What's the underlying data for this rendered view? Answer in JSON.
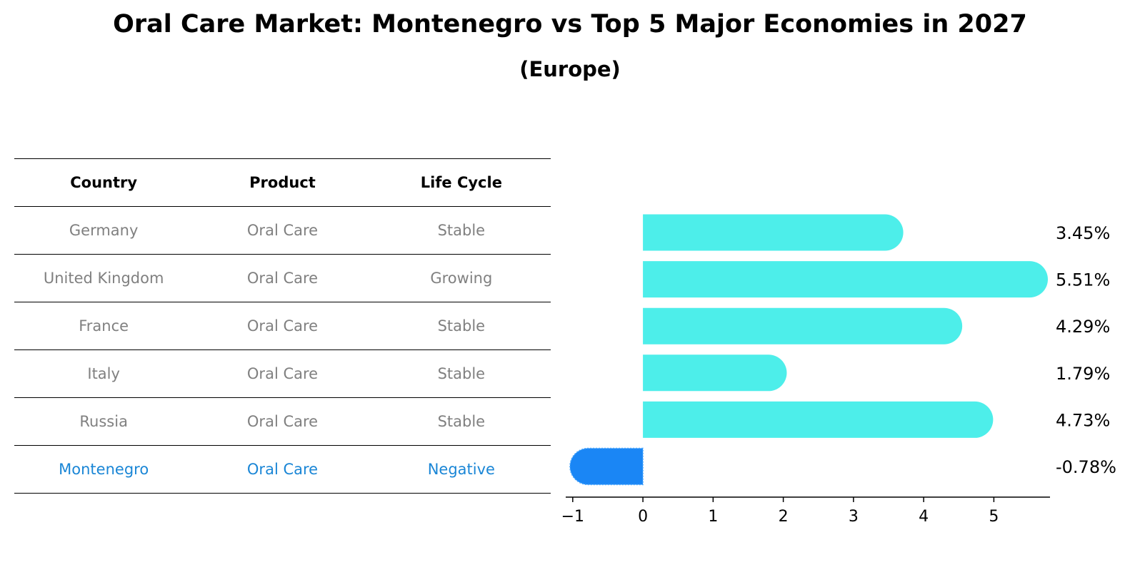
{
  "title": "Oral Care Market: Montenegro vs Top 5 Major Economies in 2027",
  "subtitle": "(Europe)",
  "table": {
    "headers": [
      "Country",
      "Product",
      "Life Cycle"
    ],
    "rows": [
      {
        "country": "Germany",
        "product": "Oral Care",
        "life_cycle": "Stable"
      },
      {
        "country": "United Kingdom",
        "product": "Oral Care",
        "life_cycle": "Growing"
      },
      {
        "country": "France",
        "product": "Oral Care",
        "life_cycle": "Stable"
      },
      {
        "country": "Italy",
        "product": "Oral Care",
        "life_cycle": "Stable"
      },
      {
        "country": "Russia",
        "product": "Oral Care",
        "life_cycle": "Stable"
      },
      {
        "country": "Montenegro",
        "product": "Oral Care",
        "life_cycle": "Negative",
        "highlight": true
      }
    ]
  },
  "colors": {
    "bar": "#4deeea",
    "highlight_bar": "#1a86f5",
    "highlight_text": "#1a86d6",
    "table_text": "#808080"
  },
  "chart_data": {
    "type": "bar",
    "orientation": "horizontal",
    "categories": [
      "Germany",
      "United Kingdom",
      "France",
      "Italy",
      "Russia",
      "Montenegro"
    ],
    "values": [
      3.45,
      5.51,
      4.29,
      1.79,
      4.73,
      -0.78
    ],
    "value_labels": [
      "3.45%",
      "5.51%",
      "4.29%",
      "1.79%",
      "4.73%",
      "-0.78%"
    ],
    "xlim": [
      -1.1,
      5.8
    ],
    "xticks": [
      -1,
      0,
      1,
      2,
      3,
      4,
      5
    ],
    "xtick_labels": [
      "−1",
      "0",
      "1",
      "2",
      "3",
      "4",
      "5"
    ],
    "highlight_index": 5,
    "grid": false
  }
}
